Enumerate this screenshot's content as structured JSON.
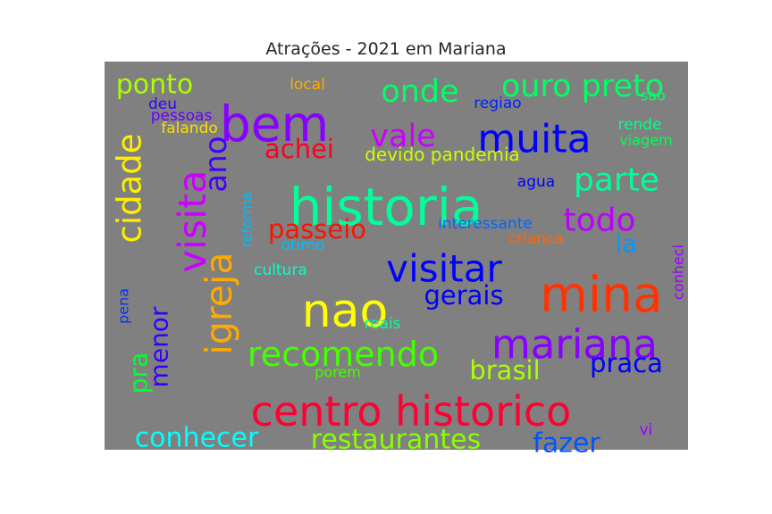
{
  "chart_data": {
    "type": "wordcloud",
    "title": "Atrações - 2021 em Mariana",
    "background": "#808080",
    "words": [
      {
        "text": "historia",
        "color": "#00ff99",
        "size": 58,
        "rotation": 0
      },
      {
        "text": "centro historico",
        "color": "#ff0033",
        "size": 46,
        "rotation": 0
      },
      {
        "text": "nao",
        "color": "#ffff00",
        "size": 52,
        "rotation": 0
      },
      {
        "text": "mina",
        "color": "#ff3300",
        "size": 55,
        "rotation": 0
      },
      {
        "text": "bem",
        "color": "#8800ff",
        "size": 55,
        "rotation": 0
      },
      {
        "text": "muita",
        "color": "#0000ff",
        "size": 44,
        "rotation": 0
      },
      {
        "text": "visita",
        "color": "#cc00ff",
        "size": 43,
        "rotation": -90
      },
      {
        "text": "igreja",
        "color": "#ffaa00",
        "size": 41,
        "rotation": -90
      },
      {
        "text": "cidade",
        "color": "#ffee00",
        "size": 37,
        "rotation": -90
      },
      {
        "text": "visitar",
        "color": "#0000ff",
        "size": 42,
        "rotation": 0
      },
      {
        "text": "mariana",
        "color": "#8800ff",
        "size": 45,
        "rotation": 0
      },
      {
        "text": "recomendo",
        "color": "#44ff00",
        "size": 38,
        "rotation": 0
      },
      {
        "text": "parte",
        "color": "#00ff99",
        "size": 36,
        "rotation": 0
      },
      {
        "text": "ouro preto",
        "color": "#00ff66",
        "size": 35,
        "rotation": 0
      },
      {
        "text": "onde",
        "color": "#00ff66",
        "size": 35,
        "rotation": 0
      },
      {
        "text": "vale",
        "color": "#cc00ff",
        "size": 35,
        "rotation": 0
      },
      {
        "text": "ano",
        "color": "#4400ff",
        "size": 34,
        "rotation": -90
      },
      {
        "text": "todo",
        "color": "#bb00ff",
        "size": 36,
        "rotation": 0
      },
      {
        "text": "conhecer",
        "color": "#00ffff",
        "size": 30,
        "rotation": 0
      },
      {
        "text": "restaurantes",
        "color": "#88ff00",
        "size": 30,
        "rotation": 0
      },
      {
        "text": "fazer",
        "color": "#0055ff",
        "size": 30,
        "rotation": 0
      },
      {
        "text": "ponto",
        "color": "#aaff00",
        "size": 30,
        "rotation": 0
      },
      {
        "text": "achei",
        "color": "#ff0022",
        "size": 29,
        "rotation": 0
      },
      {
        "text": "passeio",
        "color": "#ff1100",
        "size": 29,
        "rotation": 0
      },
      {
        "text": "gerais",
        "color": "#0000ff",
        "size": 29,
        "rotation": 0
      },
      {
        "text": "brasil",
        "color": "#aaff00",
        "size": 29,
        "rotation": 0
      },
      {
        "text": "praca",
        "color": "#0000ff",
        "size": 29,
        "rotation": 0
      },
      {
        "text": "menor",
        "color": "#3300ff",
        "size": 28,
        "rotation": -90
      },
      {
        "text": "pra",
        "color": "#00ff33",
        "size": 28,
        "rotation": -90
      },
      {
        "text": "la",
        "color": "#0099ff",
        "size": 28,
        "rotation": 0
      },
      {
        "text": "devido pandemia",
        "color": "#ccff00",
        "size": 20,
        "rotation": 0
      },
      {
        "text": "interessante",
        "color": "#0066ff",
        "size": 17,
        "rotation": 0
      },
      {
        "text": "agua",
        "color": "#0000ff",
        "size": 17,
        "rotation": 0
      },
      {
        "text": "crianca",
        "color": "#ff6600",
        "size": 17,
        "rotation": 0
      },
      {
        "text": "otimo",
        "color": "#00bbff",
        "size": 17,
        "rotation": 0
      },
      {
        "text": "cultura",
        "color": "#00ffcc",
        "size": 17,
        "rotation": 0
      },
      {
        "text": "reforma",
        "color": "#00bbff",
        "size": 16,
        "rotation": -90
      },
      {
        "text": "local",
        "color": "#ffaa00",
        "size": 17,
        "rotation": 0
      },
      {
        "text": "regiao",
        "color": "#0022ff",
        "size": 17,
        "rotation": 0
      },
      {
        "text": "sao",
        "color": "#00ff66",
        "size": 16,
        "rotation": 0
      },
      {
        "text": "rende",
        "color": "#00ff88",
        "size": 17,
        "rotation": 0
      },
      {
        "text": "viagem",
        "color": "#00ff55",
        "size": 16,
        "rotation": 0
      },
      {
        "text": "deu",
        "color": "#3300ff",
        "size": 17,
        "rotation": 0
      },
      {
        "text": "pessoas",
        "color": "#6600ff",
        "size": 17,
        "rotation": 0
      },
      {
        "text": "falando",
        "color": "#ffdd00",
        "size": 17,
        "rotation": 0
      },
      {
        "text": "reais",
        "color": "#00ff99",
        "size": 17,
        "rotation": 0
      },
      {
        "text": "porem",
        "color": "#44ff00",
        "size": 16,
        "rotation": 0
      },
      {
        "text": "pena",
        "color": "#0033ff",
        "size": 16,
        "rotation": -90
      },
      {
        "text": "conheci",
        "color": "#9900ff",
        "size": 16,
        "rotation": -90
      },
      {
        "text": "vi",
        "color": "#9900ff",
        "size": 17,
        "rotation": 0
      }
    ]
  }
}
